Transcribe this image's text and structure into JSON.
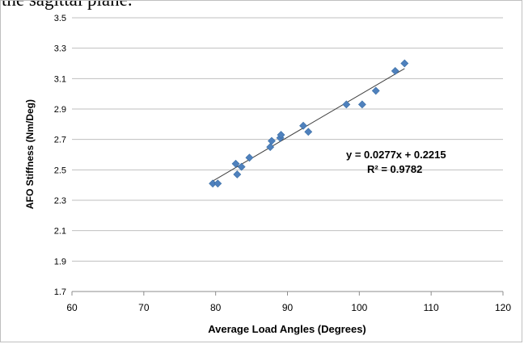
{
  "caption_fragment": "the sagittal plane.",
  "chart_data": {
    "type": "scatter",
    "xlabel": "Average Load Angles (Degrees)",
    "ylabel": "AFO Stiffness (Nm/Deg)",
    "xlim": [
      60,
      120
    ],
    "ylim": [
      1.7,
      3.5
    ],
    "x_ticks": [
      60,
      70,
      80,
      90,
      100,
      110,
      120
    ],
    "y_ticks": [
      1.7,
      1.9,
      2.1,
      2.3,
      2.5,
      2.7,
      2.9,
      3.1,
      3.3,
      3.5
    ],
    "grid": "horizontal",
    "marker_color": "#4f81bd",
    "trendline_color": "#404040",
    "points": [
      {
        "x": 79.6,
        "y": 2.41
      },
      {
        "x": 80.3,
        "y": 2.41
      },
      {
        "x": 82.8,
        "y": 2.54
      },
      {
        "x": 83.0,
        "y": 2.47
      },
      {
        "x": 83.6,
        "y": 2.52
      },
      {
        "x": 84.7,
        "y": 2.58
      },
      {
        "x": 87.6,
        "y": 2.65
      },
      {
        "x": 87.8,
        "y": 2.69
      },
      {
        "x": 89.0,
        "y": 2.71
      },
      {
        "x": 89.1,
        "y": 2.73
      },
      {
        "x": 92.2,
        "y": 2.79
      },
      {
        "x": 92.9,
        "y": 2.75
      },
      {
        "x": 98.2,
        "y": 2.93
      },
      {
        "x": 100.4,
        "y": 2.93
      },
      {
        "x": 102.3,
        "y": 3.02
      },
      {
        "x": 105.0,
        "y": 3.15
      },
      {
        "x": 106.3,
        "y": 3.2
      }
    ],
    "trendline": {
      "slope": 0.0277,
      "intercept": 0.2215,
      "x_range": [
        79.6,
        106.3
      ],
      "equation_label": "y = 0.0277x + 0.2215",
      "r2_label": "R² = 0.9782"
    }
  }
}
